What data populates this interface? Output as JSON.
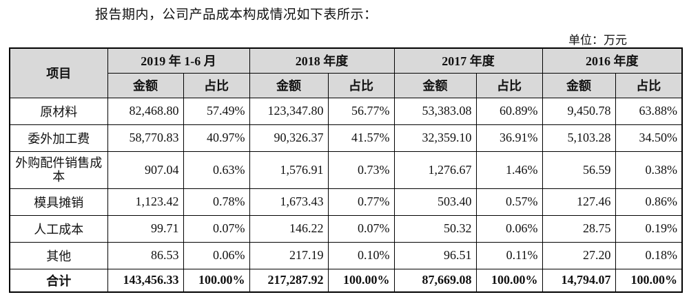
{
  "intro_text": "报告期内，公司产品成本构成情况如下表所示：",
  "unit_text": "单位：万元",
  "table": {
    "item_header": "项目",
    "periods": [
      "2019 年 1-6 月",
      "2018 年度",
      "2017 年度",
      "2016 年度"
    ],
    "sub_headers": [
      "金额",
      "占比"
    ],
    "rows": [
      {
        "item": "原材料",
        "values": [
          "82,468.80",
          "57.49%",
          "123,347.80",
          "56.77%",
          "53,383.08",
          "60.89%",
          "9,450.78",
          "63.88%"
        ]
      },
      {
        "item": "委外加工费",
        "values": [
          "58,770.83",
          "40.97%",
          "90,326.37",
          "41.57%",
          "32,359.10",
          "36.91%",
          "5,103.28",
          "34.50%"
        ]
      },
      {
        "item": "外购配件销售成本",
        "values": [
          "907.04",
          "0.63%",
          "1,576.91",
          "0.73%",
          "1,276.67",
          "1.46%",
          "56.59",
          "0.38%"
        ]
      },
      {
        "item": "模具摊销",
        "values": [
          "1,123.42",
          "0.78%",
          "1,673.43",
          "0.77%",
          "503.40",
          "0.57%",
          "127.46",
          "0.86%"
        ]
      },
      {
        "item": "人工成本",
        "values": [
          "99.71",
          "0.07%",
          "146.22",
          "0.07%",
          "50.32",
          "0.06%",
          "28.75",
          "0.19%"
        ]
      },
      {
        "item": "其他",
        "values": [
          "86.53",
          "0.06%",
          "217.19",
          "0.10%",
          "96.51",
          "0.11%",
          "27.20",
          "0.18%"
        ]
      }
    ],
    "total": {
      "item": "合计",
      "values": [
        "143,456.33",
        "100.00%",
        "217,287.92",
        "100.00%",
        "87,669.08",
        "100.00%",
        "14,794.07",
        "100.00%"
      ]
    }
  }
}
